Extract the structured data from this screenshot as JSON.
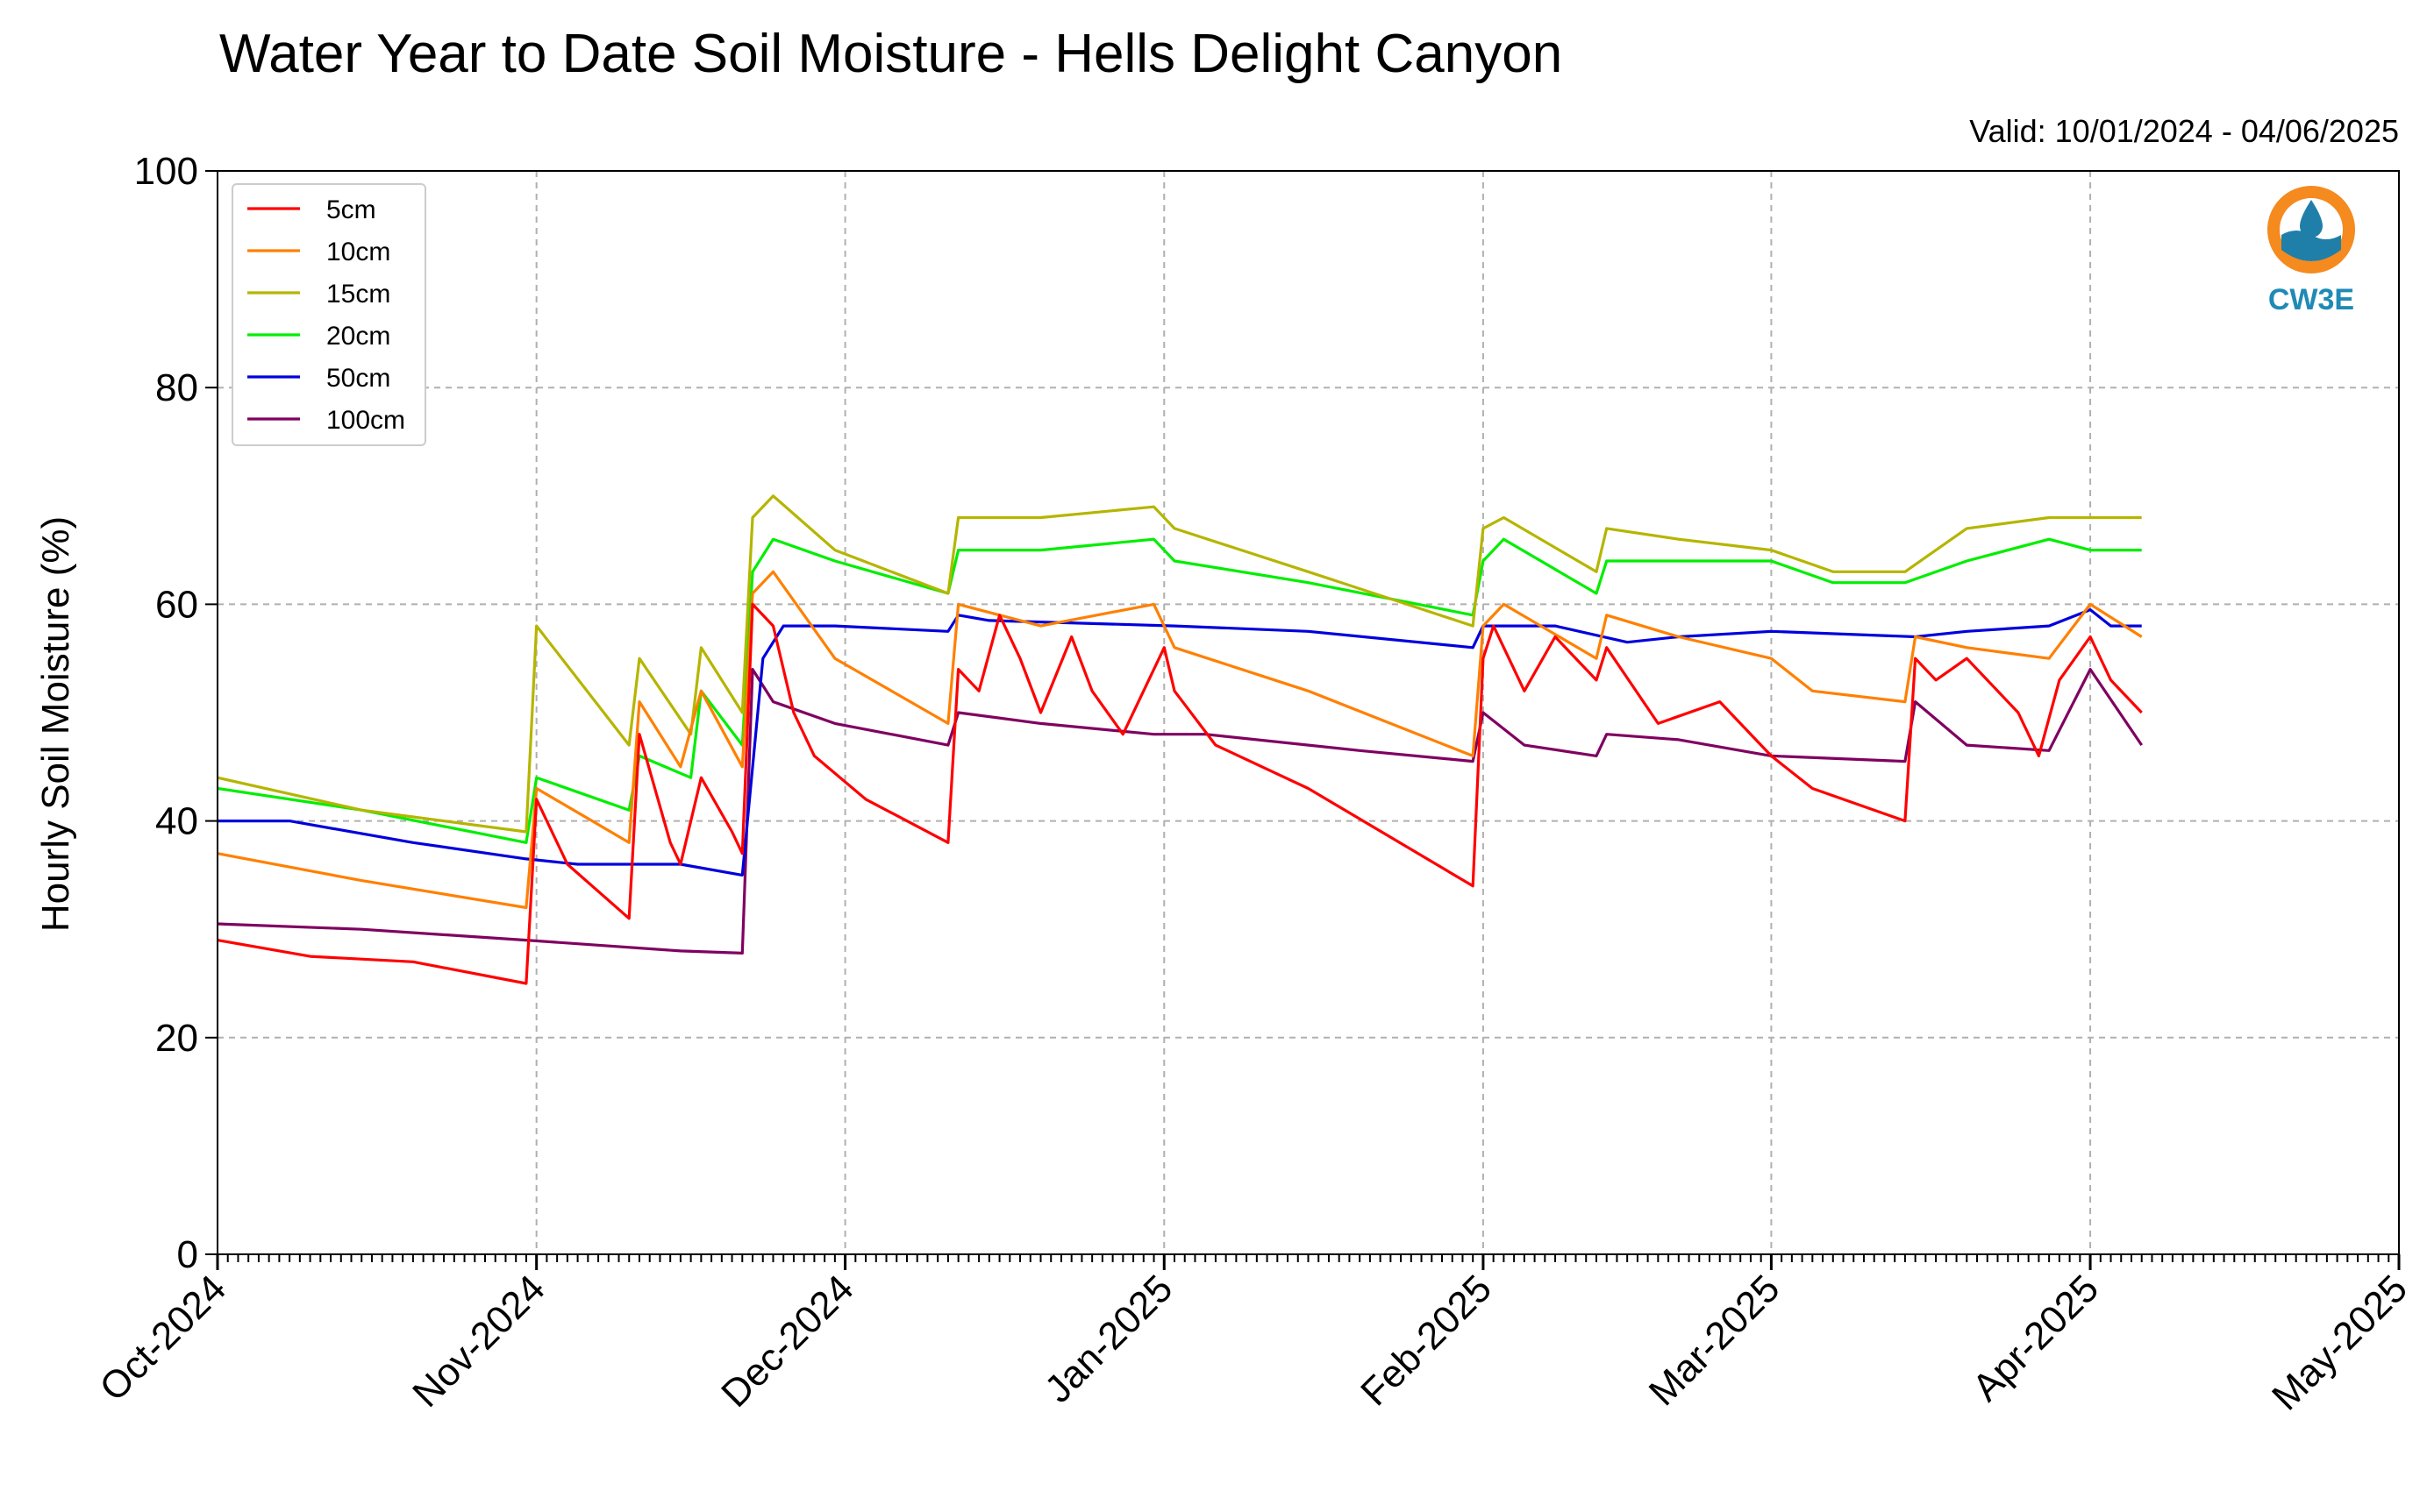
{
  "chart_data": {
    "type": "line",
    "title": "Water Year to Date Soil Moisture - Hells Delight Canyon",
    "subtitle": "Valid: 10/01/2024 - 04/06/2025",
    "ylabel": "Hourly Soil Moisture (%)",
    "xlabel": "",
    "ylim": [
      0,
      100
    ],
    "y_ticks": [
      0,
      20,
      40,
      60,
      80,
      100
    ],
    "x_range": [
      "2024-10-01",
      "2025-05-01"
    ],
    "x_ticks": [
      "Oct-2024",
      "Nov-2024",
      "Dec-2024",
      "Jan-2025",
      "Feb-2025",
      "Mar-2025",
      "Apr-2025",
      "May-2025"
    ],
    "x_tick_dates": [
      "2024-10-01",
      "2024-11-01",
      "2024-12-01",
      "2025-01-01",
      "2025-02-01",
      "2025-03-01",
      "2025-04-01",
      "2025-05-01"
    ],
    "grid": true,
    "legend_position": "top-left",
    "logo_text": "CW3E",
    "series": [
      {
        "name": "5cm",
        "color": "#ff0000",
        "x": [
          "2024-10-01",
          "2024-10-10",
          "2024-10-20",
          "2024-10-31",
          "2024-11-01",
          "2024-11-04",
          "2024-11-10",
          "2024-11-11",
          "2024-11-14",
          "2024-11-15",
          "2024-11-17",
          "2024-11-20",
          "2024-11-21",
          "2024-11-22",
          "2024-11-24",
          "2024-11-26",
          "2024-11-28",
          "2024-12-03",
          "2024-12-11",
          "2024-12-12",
          "2024-12-14",
          "2024-12-16",
          "2024-12-18",
          "2024-12-20",
          "2024-12-23",
          "2024-12-25",
          "2024-12-28",
          "2025-01-01",
          "2025-01-02",
          "2025-01-06",
          "2025-01-15",
          "2025-01-31",
          "2025-02-01",
          "2025-02-02",
          "2025-02-05",
          "2025-02-08",
          "2025-02-12",
          "2025-02-13",
          "2025-02-18",
          "2025-02-24",
          "2025-03-01",
          "2025-03-05",
          "2025-03-14",
          "2025-03-15",
          "2025-03-17",
          "2025-03-20",
          "2025-03-25",
          "2025-03-27",
          "2025-03-29",
          "2025-04-01",
          "2025-04-03",
          "2025-04-06"
        ],
        "values": [
          29,
          27.5,
          27,
          25,
          42,
          36,
          31,
          48,
          38,
          36,
          44,
          39,
          37,
          60,
          58,
          50,
          46,
          42,
          38,
          54,
          52,
          59,
          55,
          50,
          57,
          52,
          48,
          56,
          52,
          47,
          43,
          34,
          55,
          58,
          52,
          57,
          53,
          56,
          49,
          51,
          46,
          43,
          40,
          55,
          53,
          55,
          50,
          46,
          53,
          57,
          53,
          50
        ]
      },
      {
        "name": "10cm",
        "color": "#ff8000",
        "x": [
          "2024-10-01",
          "2024-10-15",
          "2024-10-31",
          "2024-11-01",
          "2024-11-10",
          "2024-11-11",
          "2024-11-15",
          "2024-11-17",
          "2024-11-21",
          "2024-11-22",
          "2024-11-24",
          "2024-11-30",
          "2024-12-11",
          "2024-12-12",
          "2024-12-20",
          "2024-12-31",
          "2025-01-02",
          "2025-01-15",
          "2025-01-31",
          "2025-02-01",
          "2025-02-03",
          "2025-02-12",
          "2025-02-13",
          "2025-02-20",
          "2025-03-01",
          "2025-03-05",
          "2025-03-14",
          "2025-03-15",
          "2025-03-20",
          "2025-03-28",
          "2025-04-01",
          "2025-04-06"
        ],
        "values": [
          37,
          34.5,
          32,
          43,
          38,
          51,
          45,
          52,
          45,
          61,
          63,
          55,
          49,
          60,
          58,
          60,
          56,
          52,
          46,
          58,
          60,
          55,
          59,
          57,
          55,
          52,
          51,
          57,
          56,
          55,
          60,
          57
        ]
      },
      {
        "name": "15cm",
        "color": "#b5b500",
        "x": [
          "2024-10-01",
          "2024-10-15",
          "2024-10-31",
          "2024-11-01",
          "2024-11-10",
          "2024-11-11",
          "2024-11-16",
          "2024-11-17",
          "2024-11-21",
          "2024-11-22",
          "2024-11-24",
          "2024-11-30",
          "2024-12-11",
          "2024-12-12",
          "2024-12-20",
          "2024-12-31",
          "2025-01-02",
          "2025-01-15",
          "2025-01-31",
          "2025-02-01",
          "2025-02-03",
          "2025-02-12",
          "2025-02-13",
          "2025-02-20",
          "2025-03-01",
          "2025-03-07",
          "2025-03-14",
          "2025-03-20",
          "2025-03-28",
          "2025-04-01",
          "2025-04-06"
        ],
        "values": [
          44,
          41,
          39,
          58,
          47,
          55,
          48,
          56,
          50,
          68,
          70,
          65,
          61,
          68,
          68,
          69,
          67,
          63,
          58,
          67,
          68,
          63,
          67,
          66,
          65,
          63,
          63,
          67,
          68,
          68,
          68
        ]
      },
      {
        "name": "20cm",
        "color": "#00ee00",
        "x": [
          "2024-10-01",
          "2024-10-15",
          "2024-10-31",
          "2024-11-01",
          "2024-11-10",
          "2024-11-11",
          "2024-11-16",
          "2024-11-17",
          "2024-11-21",
          "2024-11-22",
          "2024-11-24",
          "2024-11-30",
          "2024-12-11",
          "2024-12-12",
          "2024-12-20",
          "2024-12-31",
          "2025-01-02",
          "2025-01-15",
          "2025-01-31",
          "2025-02-01",
          "2025-02-03",
          "2025-02-12",
          "2025-02-13",
          "2025-02-20",
          "2025-03-01",
          "2025-03-07",
          "2025-03-14",
          "2025-03-20",
          "2025-03-28",
          "2025-04-01",
          "2025-04-06"
        ],
        "values": [
          43,
          41,
          38,
          44,
          41,
          46,
          44,
          52,
          47,
          63,
          66,
          64,
          61,
          65,
          65,
          66,
          64,
          62,
          59,
          64,
          66,
          61,
          64,
          64,
          64,
          62,
          62,
          64,
          66,
          65,
          65
        ]
      },
      {
        "name": "50cm",
        "color": "#0000dd",
        "x": [
          "2024-10-01",
          "2024-10-08",
          "2024-10-20",
          "2024-10-31",
          "2024-11-05",
          "2024-11-15",
          "2024-11-21",
          "2024-11-23",
          "2024-11-25",
          "2024-11-30",
          "2024-12-11",
          "2024-12-12",
          "2024-12-15",
          "2025-01-02",
          "2025-01-15",
          "2025-01-31",
          "2025-02-01",
          "2025-02-08",
          "2025-02-15",
          "2025-02-20",
          "2025-03-01",
          "2025-03-15",
          "2025-03-20",
          "2025-03-28",
          "2025-04-01",
          "2025-04-03",
          "2025-04-06"
        ],
        "values": [
          40,
          40,
          38,
          36.5,
          36,
          36,
          35,
          55,
          58,
          58,
          57.5,
          59,
          58.5,
          58,
          57.5,
          56,
          58,
          58,
          56.5,
          57,
          57.5,
          57,
          57.5,
          58,
          59.5,
          58,
          58
        ]
      },
      {
        "name": "100cm",
        "color": "#800060",
        "x": [
          "2024-10-01",
          "2024-10-15",
          "2024-10-31",
          "2024-11-15",
          "2024-11-21",
          "2024-11-22",
          "2024-11-24",
          "2024-11-30",
          "2024-12-11",
          "2024-12-12",
          "2024-12-20",
          "2024-12-31",
          "2025-01-05",
          "2025-01-20",
          "2025-01-31",
          "2025-02-01",
          "2025-02-05",
          "2025-02-12",
          "2025-02-13",
          "2025-02-20",
          "2025-03-01",
          "2025-03-14",
          "2025-03-15",
          "2025-03-20",
          "2025-03-28",
          "2025-04-01",
          "2025-04-06"
        ],
        "values": [
          30.5,
          30,
          29,
          28,
          27.8,
          54,
          51,
          49,
          47,
          50,
          49,
          48,
          48,
          46.5,
          45.5,
          50,
          47,
          46,
          48,
          47.5,
          46,
          45.5,
          51,
          47,
          46.5,
          54,
          47
        ]
      }
    ]
  }
}
